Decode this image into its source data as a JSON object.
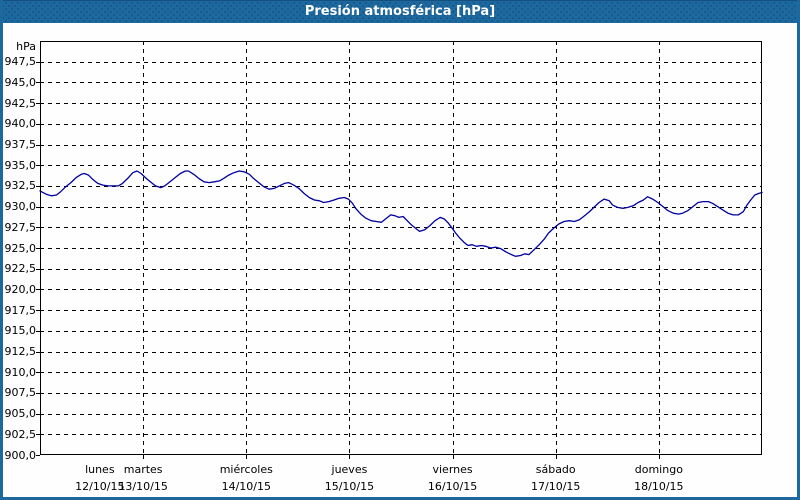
{
  "title": "Presión atmosférica [hPa]",
  "colors": {
    "titlebar_blue": "#1d689e",
    "panel_border_blue": "#1d689e",
    "line_navy": "#0000a0",
    "grid_color": "#000000",
    "frame_color": "#000000",
    "background": "#fdfefd",
    "title_text": "#ffffff"
  },
  "chart_data": {
    "type": "line",
    "title": "Presión atmosférica [hPa]",
    "ylabel": "hPa",
    "xlabel": "",
    "ylim": [
      900,
      950
    ],
    "ytick_step": 2.5,
    "ytick_labels": [
      "947,5",
      "945,0",
      "942,5",
      "940,0",
      "937,5",
      "935,0",
      "932,5",
      "930,0",
      "927,5",
      "925,0",
      "922,5",
      "920,0",
      "917,5",
      "915,0",
      "912,5",
      "910,0",
      "907,5",
      "905,0",
      "902,5",
      "900,0"
    ],
    "days": 7,
    "x_categories": [
      {
        "day": "lunes",
        "date": "12/10/15"
      },
      {
        "day": "martes",
        "date": "13/10/15"
      },
      {
        "day": "miércoles",
        "date": "14/10/15"
      },
      {
        "day": "jueves",
        "date": "15/10/15"
      },
      {
        "day": "viernes",
        "date": "16/10/15"
      },
      {
        "day": "sábado",
        "date": "17/10/15"
      },
      {
        "day": "domingo",
        "date": "18/10/15"
      }
    ],
    "grid": "dashed",
    "legend_position": "none",
    "series": [
      {
        "name": "Presión atmosférica",
        "points": [
          [
            0.0,
            931.9
          ],
          [
            0.06,
            931.5
          ],
          [
            0.11,
            931.3
          ],
          [
            0.16,
            931.4
          ],
          [
            0.2,
            931.8
          ],
          [
            0.25,
            932.4
          ],
          [
            0.3,
            932.9
          ],
          [
            0.35,
            933.5
          ],
          [
            0.4,
            933.9
          ],
          [
            0.43,
            934.0
          ],
          [
            0.47,
            933.8
          ],
          [
            0.51,
            933.3
          ],
          [
            0.56,
            932.8
          ],
          [
            0.61,
            932.6
          ],
          [
            0.66,
            932.5
          ],
          [
            0.71,
            932.5
          ],
          [
            0.76,
            932.5
          ],
          [
            0.8,
            932.8
          ],
          [
            0.85,
            933.4
          ],
          [
            0.9,
            934.1
          ],
          [
            0.94,
            934.3
          ],
          [
            0.98,
            934.0
          ],
          [
            1.03,
            933.4
          ],
          [
            1.08,
            932.9
          ],
          [
            1.12,
            932.5
          ],
          [
            1.17,
            932.3
          ],
          [
            1.21,
            932.5
          ],
          [
            1.26,
            933.0
          ],
          [
            1.31,
            933.5
          ],
          [
            1.36,
            934.0
          ],
          [
            1.41,
            934.3
          ],
          [
            1.44,
            934.3
          ],
          [
            1.49,
            933.9
          ],
          [
            1.54,
            933.4
          ],
          [
            1.59,
            933.0
          ],
          [
            1.64,
            932.9
          ],
          [
            1.69,
            933.0
          ],
          [
            1.74,
            933.1
          ],
          [
            1.78,
            933.4
          ],
          [
            1.83,
            933.8
          ],
          [
            1.88,
            934.1
          ],
          [
            1.93,
            934.3
          ],
          [
            1.98,
            934.2
          ],
          [
            2.03,
            933.9
          ],
          [
            2.07,
            933.4
          ],
          [
            2.12,
            932.9
          ],
          [
            2.17,
            932.4
          ],
          [
            2.22,
            932.1
          ],
          [
            2.27,
            932.2
          ],
          [
            2.32,
            932.5
          ],
          [
            2.37,
            932.8
          ],
          [
            2.41,
            932.9
          ],
          [
            2.46,
            932.6
          ],
          [
            2.51,
            932.2
          ],
          [
            2.56,
            931.6
          ],
          [
            2.61,
            931.1
          ],
          [
            2.66,
            930.8
          ],
          [
            2.71,
            930.7
          ],
          [
            2.75,
            930.5
          ],
          [
            2.8,
            930.6
          ],
          [
            2.85,
            930.8
          ],
          [
            2.9,
            931.0
          ],
          [
            2.95,
            931.1
          ],
          [
            2.99,
            930.9
          ],
          [
            3.03,
            930.4
          ],
          [
            3.06,
            929.8
          ],
          [
            3.11,
            929.1
          ],
          [
            3.16,
            928.6
          ],
          [
            3.21,
            928.3
          ],
          [
            3.26,
            928.2
          ],
          [
            3.31,
            928.1
          ],
          [
            3.35,
            928.5
          ],
          [
            3.4,
            929.0
          ],
          [
            3.44,
            928.9
          ],
          [
            3.48,
            928.7
          ],
          [
            3.52,
            928.8
          ],
          [
            3.56,
            928.3
          ],
          [
            3.6,
            927.8
          ],
          [
            3.65,
            927.3
          ],
          [
            3.68,
            927.0
          ],
          [
            3.73,
            927.2
          ],
          [
            3.78,
            927.7
          ],
          [
            3.83,
            928.3
          ],
          [
            3.88,
            928.7
          ],
          [
            3.92,
            928.5
          ],
          [
            3.96,
            928.0
          ],
          [
            3.99,
            927.5
          ],
          [
            4.03,
            926.8
          ],
          [
            4.07,
            926.2
          ],
          [
            4.11,
            925.7
          ],
          [
            4.15,
            925.3
          ],
          [
            4.19,
            925.4
          ],
          [
            4.23,
            925.2
          ],
          [
            4.28,
            925.3
          ],
          [
            4.32,
            925.2
          ],
          [
            4.37,
            925.0
          ],
          [
            4.42,
            925.1
          ],
          [
            4.47,
            924.9
          ],
          [
            4.52,
            924.5
          ],
          [
            4.57,
            924.2
          ],
          [
            4.61,
            924.0
          ],
          [
            4.66,
            924.1
          ],
          [
            4.7,
            924.3
          ],
          [
            4.74,
            924.2
          ],
          [
            4.79,
            924.8
          ],
          [
            4.84,
            925.4
          ],
          [
            4.89,
            926.1
          ],
          [
            4.93,
            926.8
          ],
          [
            4.98,
            927.4
          ],
          [
            5.03,
            927.9
          ],
          [
            5.08,
            928.2
          ],
          [
            5.13,
            928.3
          ],
          [
            5.18,
            928.2
          ],
          [
            5.23,
            928.4
          ],
          [
            5.27,
            928.8
          ],
          [
            5.32,
            929.3
          ],
          [
            5.37,
            929.9
          ],
          [
            5.42,
            930.5
          ],
          [
            5.47,
            930.9
          ],
          [
            5.52,
            930.7
          ],
          [
            5.55,
            930.2
          ],
          [
            5.6,
            929.9
          ],
          [
            5.65,
            929.8
          ],
          [
            5.7,
            929.9
          ],
          [
            5.75,
            930.1
          ],
          [
            5.8,
            930.5
          ],
          [
            5.85,
            930.8
          ],
          [
            5.89,
            931.2
          ],
          [
            5.94,
            930.9
          ],
          [
            5.99,
            930.5
          ],
          [
            6.04,
            930.0
          ],
          [
            6.09,
            929.5
          ],
          [
            6.14,
            929.2
          ],
          [
            6.19,
            929.1
          ],
          [
            6.23,
            929.2
          ],
          [
            6.28,
            929.5
          ],
          [
            6.33,
            930.0
          ],
          [
            6.38,
            930.5
          ],
          [
            6.43,
            930.6
          ],
          [
            6.48,
            930.6
          ],
          [
            6.52,
            930.4
          ],
          [
            6.57,
            930.0
          ],
          [
            6.62,
            929.6
          ],
          [
            6.67,
            929.2
          ],
          [
            6.72,
            929.0
          ],
          [
            6.77,
            929.0
          ],
          [
            6.82,
            929.4
          ],
          [
            6.85,
            930.1
          ],
          [
            6.89,
            930.8
          ],
          [
            6.93,
            931.4
          ],
          [
            6.97,
            931.6
          ],
          [
            7.0,
            931.7
          ]
        ]
      }
    ]
  }
}
